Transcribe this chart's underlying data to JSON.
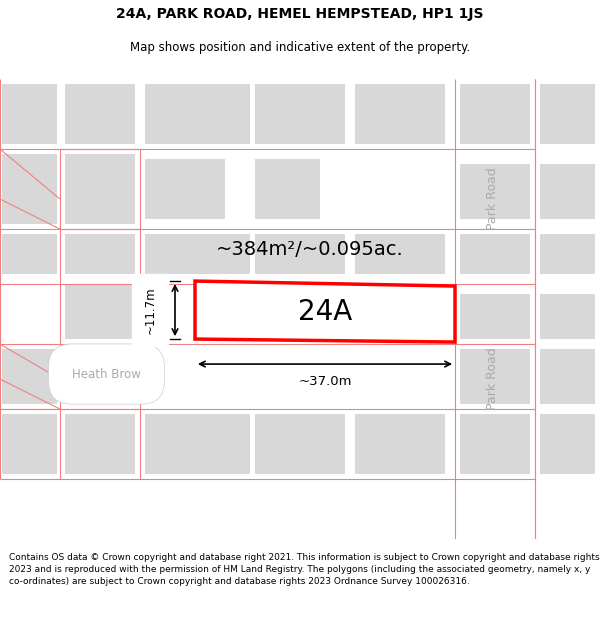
{
  "title": "24A, PARK ROAD, HEMEL HEMPSTEAD, HP1 1JS",
  "subtitle": "Map shows position and indicative extent of the property.",
  "footer": "Contains OS data © Crown copyright and database right 2021. This information is subject to Crown copyright and database rights 2023 and is reproduced with the permission of HM Land Registry. The polygons (including the associated geometry, namely x, y co-ordinates) are subject to Crown copyright and database rights 2023 Ordnance Survey 100026316.",
  "title_fontsize": 10,
  "subtitle_fontsize": 8.5,
  "footer_fontsize": 6.5,
  "map_bg": "#ffffff",
  "building_color": "#d8d8d8",
  "road_line_color": "#f08080",
  "highlight_color": "#ff0000",
  "highlight_label": "24A",
  "area_text": "~384m²/~0.095ac.",
  "width_text": "~37.0m",
  "height_text": "~11.7m",
  "park_road_label": "Park Road",
  "heath_brow_label": "Heath Brow"
}
